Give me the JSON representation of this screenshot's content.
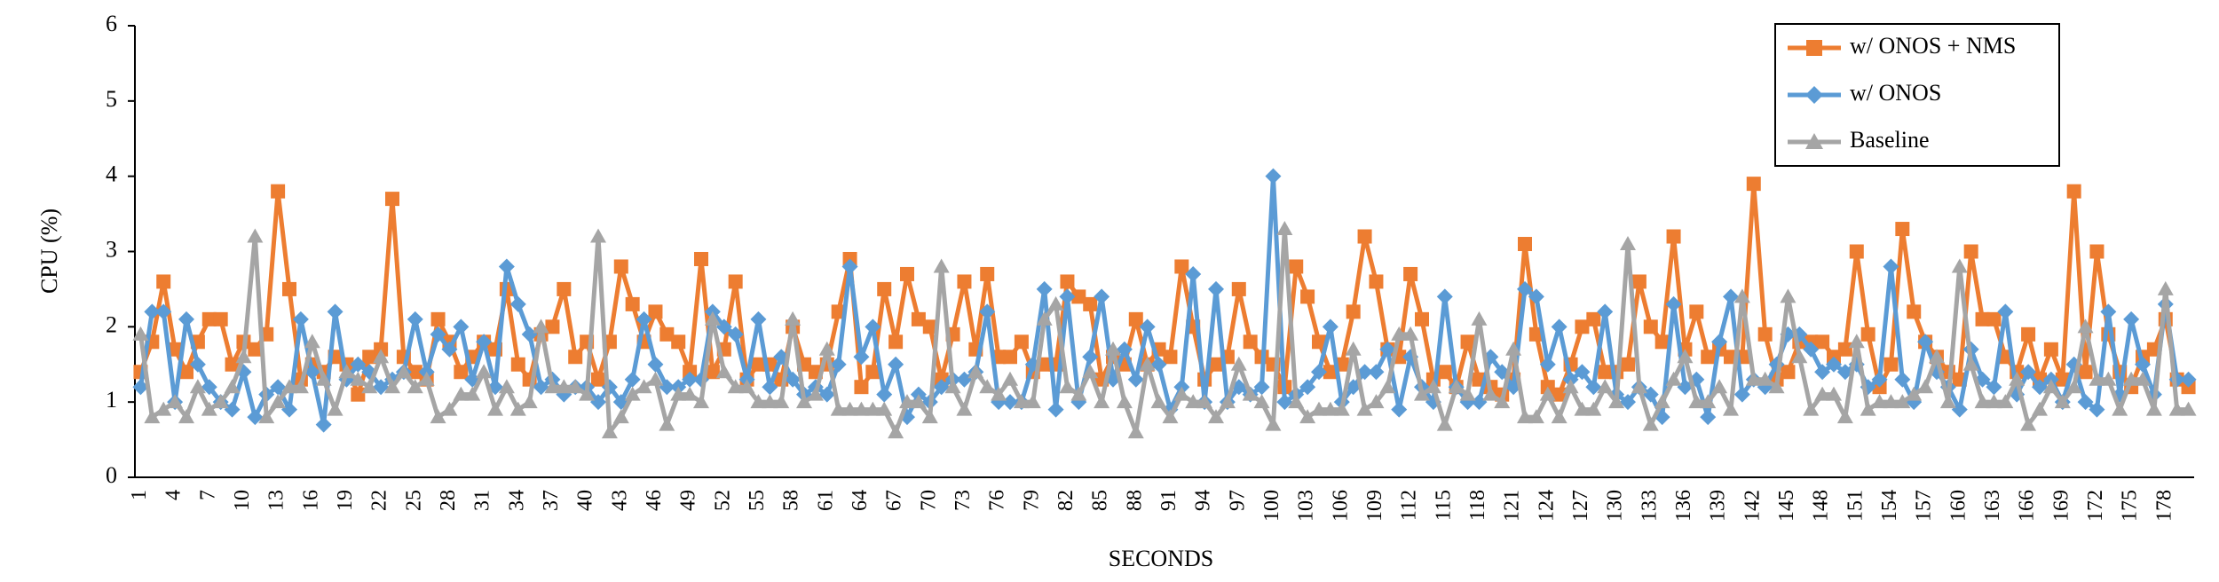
{
  "chart_data": {
    "type": "line",
    "xlabel": "SECONDS",
    "ylabel": "CPU (%)",
    "categories": [
      1,
      null,
      null,
      4,
      null,
      null,
      7,
      null,
      null,
      10,
      null,
      null,
      13,
      null,
      null,
      16,
      null,
      null,
      19,
      null,
      null,
      22,
      null,
      null,
      25,
      null,
      null,
      28,
      null,
      null,
      31,
      null,
      null,
      34,
      null,
      null,
      37,
      null,
      null,
      40,
      null,
      null,
      43,
      null,
      null,
      46,
      null,
      null,
      49,
      null,
      null,
      52,
      null,
      null,
      55,
      null,
      null,
      58,
      null,
      null,
      61,
      null,
      null,
      64,
      null,
      null,
      67,
      null,
      null,
      70,
      null,
      null,
      73,
      null,
      null,
      76,
      null,
      null,
      79,
      null,
      null,
      82,
      null,
      null,
      85,
      null,
      null,
      88,
      null,
      null,
      91,
      null,
      null,
      94,
      null,
      null,
      97,
      null,
      null,
      100,
      null,
      null,
      103,
      null,
      null,
      106,
      null,
      null,
      109,
      null,
      null,
      112,
      null,
      null,
      115,
      null,
      null,
      118,
      null,
      null,
      121,
      null,
      null,
      124,
      null,
      null,
      127,
      null,
      null,
      130,
      null,
      null,
      133,
      null,
      null,
      136,
      null,
      null,
      139,
      null,
      null,
      142,
      null,
      null,
      145,
      null,
      null,
      148,
      null,
      null,
      151,
      null,
      null,
      154,
      null,
      null,
      157,
      null,
      null,
      160,
      null,
      null,
      163,
      null,
      null,
      166,
      null,
      null,
      169,
      null,
      null,
      172,
      null,
      null,
      175,
      null,
      null,
      178,
      null,
      null
    ],
    "series": [
      {
        "name": "w/ ONOS + NMS",
        "color": "#ed7d31",
        "marker": "square",
        "values": [
          1.4,
          1.8,
          2.6,
          1.7,
          1.4,
          1.8,
          2.1,
          2.1,
          1.5,
          1.8,
          1.7,
          1.9,
          3.8,
          2.5,
          1.3,
          1.5,
          1.4,
          1.6,
          1.5,
          1.1,
          1.6,
          1.7,
          3.7,
          1.6,
          1.4,
          1.3,
          2.1,
          1.8,
          1.4,
          1.6,
          1.8,
          1.7,
          2.5,
          1.5,
          1.3,
          1.9,
          2.0,
          2.5,
          1.6,
          1.8,
          1.3,
          1.8,
          2.8,
          2.3,
          1.8,
          2.2,
          1.9,
          1.8,
          1.4,
          2.9,
          1.4,
          1.7,
          2.6,
          1.3,
          1.5,
          1.5,
          1.3,
          2.0,
          1.5,
          1.4,
          1.5,
          2.2,
          2.9,
          1.2,
          1.4,
          2.5,
          1.8,
          2.7,
          2.1,
          2.0,
          1.3,
          1.9,
          2.6,
          1.7,
          2.7,
          1.6,
          1.6,
          1.8,
          1.4,
          1.5,
          1.5,
          2.6,
          2.4,
          2.3,
          1.3,
          1.6,
          1.5,
          2.1,
          1.5,
          1.7,
          1.6,
          2.8,
          2.0,
          1.3,
          1.5,
          1.6,
          2.5,
          1.8,
          1.6,
          1.5,
          1.2,
          2.8,
          2.4,
          1.8,
          1.4,
          1.5,
          2.2,
          3.2,
          2.6,
          1.7,
          1.6,
          2.7,
          2.1,
          1.3,
          1.4,
          1.2,
          1.8,
          1.3,
          1.2,
          1.1,
          1.3,
          3.1,
          1.9,
          1.2,
          1.1,
          1.5,
          2.0,
          2.1,
          1.4,
          1.4,
          1.5,
          2.6,
          2.0,
          1.8,
          3.2,
          1.7,
          2.2,
          1.6,
          1.7,
          1.6,
          1.6,
          3.9,
          1.9,
          1.3,
          1.4,
          1.8,
          1.8,
          1.8,
          1.6,
          1.7,
          3.0,
          1.9,
          1.2,
          1.5,
          3.3,
          2.2,
          1.8,
          1.6,
          1.4,
          1.3,
          3.0,
          2.1,
          2.1,
          1.6,
          1.4,
          1.9,
          1.3,
          1.7,
          1.3,
          3.8,
          1.4,
          3.0,
          1.9,
          1.4,
          1.2,
          1.6,
          1.7,
          2.1,
          1.3,
          1.2
        ]
      },
      {
        "name": "w/ ONOS",
        "color": "#5b9bd5",
        "marker": "diamond",
        "values": [
          1.2,
          2.2,
          2.2,
          1.0,
          2.1,
          1.5,
          1.2,
          1.0,
          0.9,
          1.4,
          0.8,
          1.1,
          1.2,
          0.9,
          2.1,
          1.4,
          0.7,
          2.2,
          1.3,
          1.5,
          1.4,
          1.2,
          1.3,
          1.4,
          2.1,
          1.4,
          1.9,
          1.7,
          2.0,
          1.3,
          1.8,
          1.2,
          2.8,
          2.3,
          1.9,
          1.2,
          1.3,
          1.1,
          1.2,
          1.2,
          1.0,
          1.2,
          1.0,
          1.3,
          2.1,
          1.5,
          1.2,
          1.2,
          1.3,
          1.3,
          2.2,
          2.0,
          1.9,
          1.3,
          2.1,
          1.2,
          1.6,
          1.3,
          1.1,
          1.2,
          1.1,
          1.5,
          2.8,
          1.6,
          2.0,
          1.1,
          1.5,
          0.8,
          1.1,
          1.0,
          1.2,
          1.3,
          1.3,
          1.4,
          2.2,
          1.0,
          1.0,
          1.0,
          1.5,
          2.5,
          0.9,
          2.4,
          1.0,
          1.6,
          2.4,
          1.3,
          1.7,
          1.3,
          2.0,
          1.5,
          0.9,
          1.2,
          2.7,
          1.0,
          2.5,
          1.0,
          1.2,
          1.1,
          1.2,
          4.0,
          1.0,
          1.1,
          1.2,
          1.4,
          2.0,
          1.0,
          1.2,
          1.4,
          1.4,
          1.7,
          0.9,
          1.6,
          1.2,
          1.0,
          2.4,
          1.2,
          1.0,
          1.0,
          1.6,
          1.4,
          1.2,
          2.5,
          2.4,
          1.5,
          2.0,
          1.3,
          1.4,
          1.2,
          2.2,
          1.1,
          1.0,
          1.2,
          1.1,
          0.8,
          2.3,
          1.2,
          1.3,
          0.8,
          1.8,
          2.4,
          1.1,
          1.3,
          1.2,
          1.5,
          1.9,
          1.9,
          1.7,
          1.4,
          1.5,
          1.4,
          1.5,
          1.2,
          1.3,
          2.8,
          1.3,
          1.0,
          1.8,
          1.4,
          1.2,
          0.9,
          1.7,
          1.3,
          1.2,
          2.2,
          1.1,
          1.4,
          1.2,
          1.3,
          1.0,
          1.5,
          1.0,
          0.9,
          2.2,
          1.1,
          2.1,
          1.5,
          1.1,
          2.3,
          1.3,
          1.3
        ]
      },
      {
        "name": "Baseline",
        "color": "#a5a5a5",
        "marker": "triangle",
        "values": [
          1.9,
          0.8,
          0.9,
          1.0,
          0.8,
          1.2,
          0.9,
          1.0,
          1.2,
          1.6,
          3.2,
          0.8,
          1.0,
          1.2,
          1.2,
          1.8,
          1.3,
          0.9,
          1.4,
          1.3,
          1.2,
          1.6,
          1.2,
          1.4,
          1.2,
          1.3,
          0.8,
          0.9,
          1.1,
          1.1,
          1.4,
          0.9,
          1.2,
          0.9,
          1.0,
          2.0,
          1.2,
          1.2,
          1.2,
          1.1,
          3.2,
          0.6,
          0.8,
          1.1,
          1.2,
          1.3,
          0.7,
          1.1,
          1.1,
          1.0,
          2.1,
          1.4,
          1.2,
          1.2,
          1.0,
          1.0,
          1.0,
          2.1,
          1.0,
          1.1,
          1.7,
          0.9,
          0.9,
          0.9,
          0.9,
          0.9,
          0.6,
          1.0,
          1.0,
          0.8,
          2.8,
          1.2,
          0.9,
          1.4,
          1.2,
          1.1,
          1.3,
          1.0,
          1.0,
          2.1,
          2.3,
          1.2,
          1.1,
          1.4,
          1.0,
          1.7,
          1.0,
          0.6,
          1.5,
          1.0,
          0.8,
          1.1,
          1.0,
          1.0,
          0.8,
          1.0,
          1.5,
          1.1,
          1.0,
          0.7,
          3.3,
          1.0,
          0.8,
          0.9,
          0.9,
          0.9,
          1.7,
          0.9,
          1.0,
          1.2,
          1.9,
          1.9,
          1.1,
          1.2,
          0.7,
          1.2,
          1.1,
          2.1,
          1.1,
          1.0,
          1.7,
          0.8,
          0.8,
          1.1,
          0.8,
          1.2,
          0.9,
          0.9,
          1.2,
          1.0,
          3.1,
          1.2,
          0.7,
          1.0,
          1.3,
          1.6,
          1.0,
          1.0,
          1.2,
          0.9,
          2.4,
          1.3,
          1.3,
          1.2,
          2.4,
          1.6,
          0.9,
          1.1,
          1.1,
          0.8,
          1.8,
          0.9,
          1.0,
          1.0,
          1.0,
          1.1,
          1.2,
          1.6,
          1.0,
          2.8,
          1.5,
          1.0,
          1.0,
          1.0,
          1.3,
          0.7,
          0.9,
          1.2,
          1.0,
          1.2,
          2.0,
          1.3,
          1.3,
          0.9,
          1.3,
          1.3,
          0.9,
          2.5,
          0.9,
          0.9
        ]
      }
    ],
    "ylim": [
      0,
      6
    ],
    "yticks": [
      0,
      1,
      2,
      3,
      4,
      5,
      6
    ],
    "grid": false,
    "legend": "upper right"
  }
}
